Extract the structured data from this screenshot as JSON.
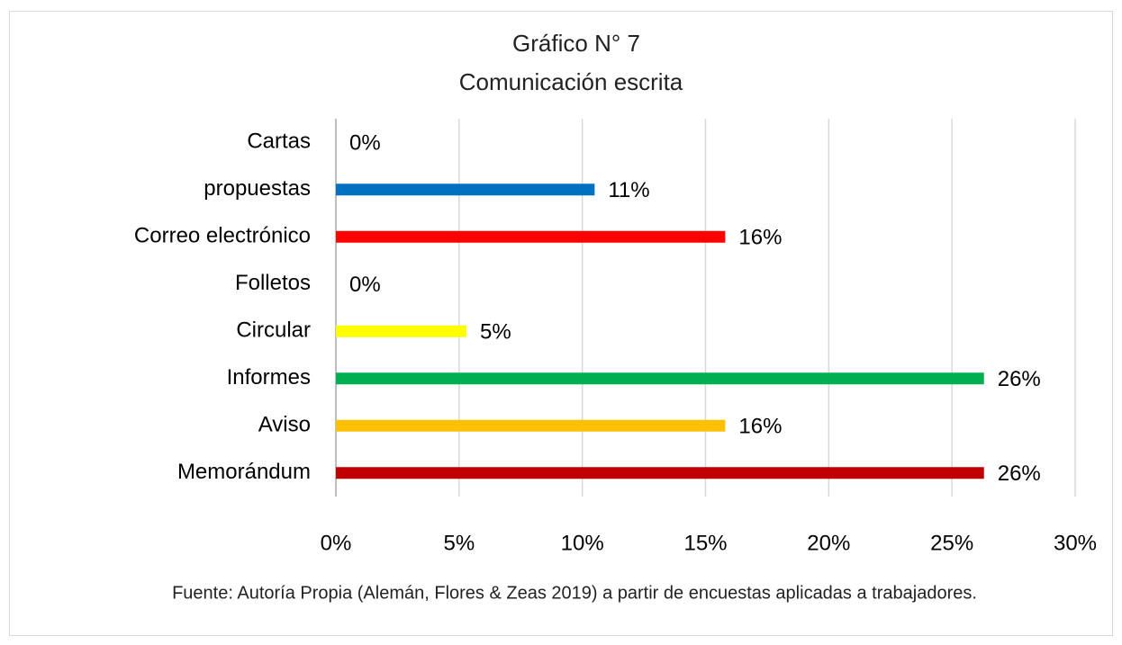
{
  "chart_data": {
    "type": "barh",
    "title": "Gráfico N° 7",
    "subtitle": "Comunicación escrita",
    "categories": [
      "Cartas",
      "propuestas",
      "Correo electrónico",
      "Folletos",
      "Circular",
      "Informes",
      "Aviso",
      "Memorándum"
    ],
    "values": [
      0,
      10.5,
      15.8,
      0,
      5.3,
      26.3,
      15.8,
      26.3
    ],
    "value_labels": [
      "0%",
      "11%",
      "16%",
      "0%",
      "5%",
      "26%",
      "16%",
      "26%"
    ],
    "colors": [
      "#4472c4",
      "#0070c0",
      "#ff0000",
      "#4472c4",
      "#ffff00",
      "#00b050",
      "#ffc000",
      "#c00000"
    ],
    "xlim": [
      0,
      30
    ],
    "xticks": [
      {
        "value": 0,
        "label": "0%"
      },
      {
        "value": 5,
        "label": "5%"
      },
      {
        "value": 10,
        "label": "10%"
      },
      {
        "value": 15,
        "label": "15%"
      },
      {
        "value": 20,
        "label": "20%"
      },
      {
        "value": 25,
        "label": "25%"
      },
      {
        "value": 30,
        "label": "30%"
      }
    ],
    "grid": true,
    "source": "Fuente: Autoría Propia (Alemán, Flores & Zeas 2019) a partir de encuestas aplicadas a trabajadores."
  }
}
